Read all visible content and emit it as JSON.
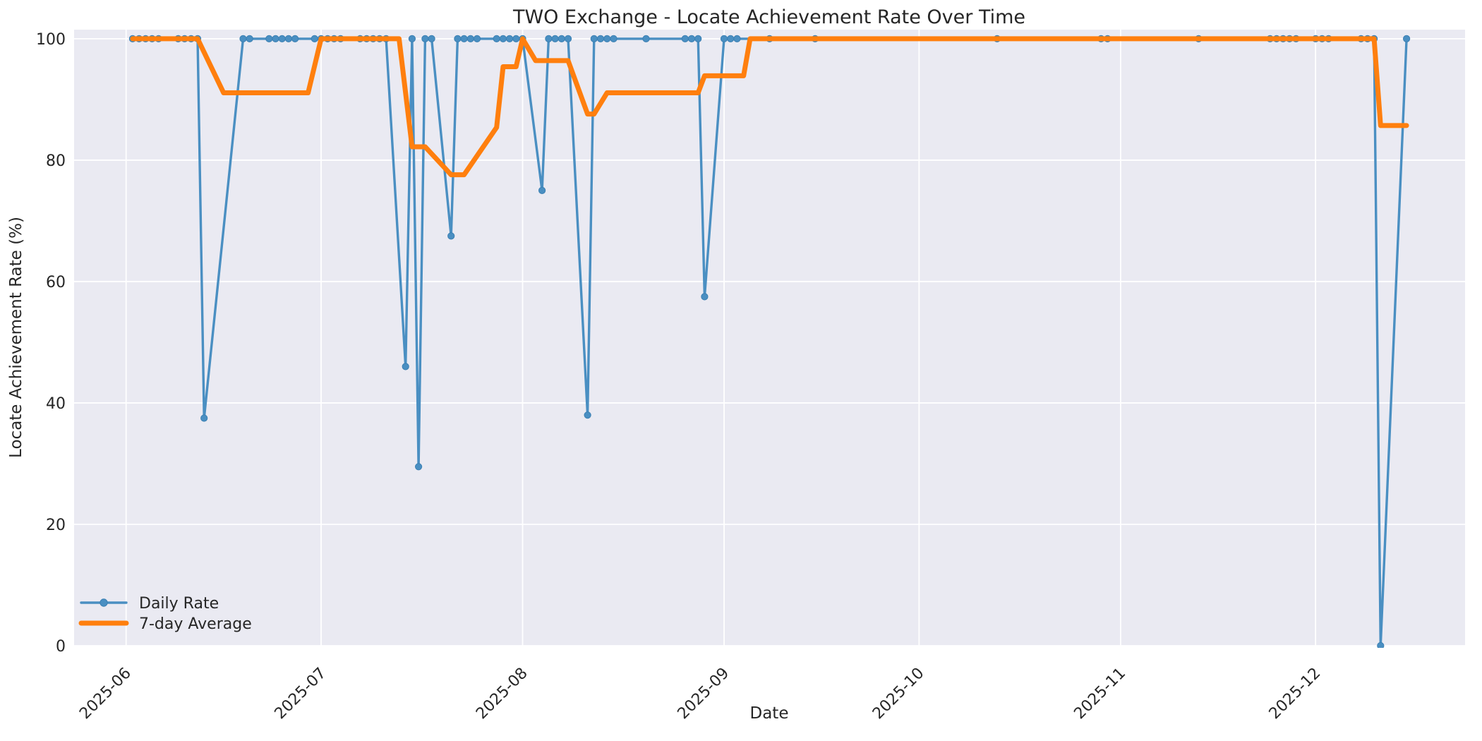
{
  "chart_data": {
    "type": "line",
    "title": "TWO Exchange - Locate Achievement Rate Over Time",
    "xlabel": "Date",
    "ylabel": "Locate Achievement Rate (%)",
    "x_ticks": [
      "2025-06",
      "2025-07",
      "2025-08",
      "2025-09",
      "2025-10",
      "2025-11",
      "2025-12"
    ],
    "y_ticks": [
      0,
      20,
      40,
      60,
      80,
      100
    ],
    "ylim": [
      0,
      101.5
    ],
    "xlim": [
      "2025-05-24",
      "2025-12-24"
    ],
    "grid": true,
    "plot_background": "#eaeaf2",
    "grid_color": "#ffffff",
    "text_color": "#262626",
    "legend_position": "lower left",
    "legend": [
      "Daily Rate",
      "7-day Average"
    ],
    "series": [
      {
        "name": "Daily Rate",
        "color": "#4a8fc2",
        "marker": true,
        "points": [
          [
            "2025-06-02",
            100
          ],
          [
            "2025-06-03",
            100
          ],
          [
            "2025-06-04",
            100
          ],
          [
            "2025-06-05",
            100
          ],
          [
            "2025-06-06",
            100
          ],
          [
            "2025-06-09",
            100
          ],
          [
            "2025-06-10",
            100
          ],
          [
            "2025-06-11",
            100
          ],
          [
            "2025-06-12",
            100
          ],
          [
            "2025-06-13",
            37.5
          ],
          [
            "2025-06-19",
            100
          ],
          [
            "2025-06-20",
            100
          ],
          [
            "2025-06-23",
            100
          ],
          [
            "2025-06-24",
            100
          ],
          [
            "2025-06-25",
            100
          ],
          [
            "2025-06-26",
            100
          ],
          [
            "2025-06-27",
            100
          ],
          [
            "2025-06-30",
            100
          ],
          [
            "2025-07-01",
            100
          ],
          [
            "2025-07-02",
            100
          ],
          [
            "2025-07-03",
            100
          ],
          [
            "2025-07-04",
            100
          ],
          [
            "2025-07-07",
            100
          ],
          [
            "2025-07-08",
            100
          ],
          [
            "2025-07-09",
            100
          ],
          [
            "2025-07-10",
            100
          ],
          [
            "2025-07-11",
            100
          ],
          [
            "2025-07-14",
            46
          ],
          [
            "2025-07-15",
            100
          ],
          [
            "2025-07-16",
            29.5
          ],
          [
            "2025-07-17",
            100
          ],
          [
            "2025-07-18",
            100
          ],
          [
            "2025-07-21",
            67.5
          ],
          [
            "2025-07-22",
            100
          ],
          [
            "2025-07-23",
            100
          ],
          [
            "2025-07-24",
            100
          ],
          [
            "2025-07-25",
            100
          ],
          [
            "2025-07-28",
            100
          ],
          [
            "2025-07-29",
            100
          ],
          [
            "2025-07-30",
            100
          ],
          [
            "2025-07-31",
            100
          ],
          [
            "2025-08-01",
            100
          ],
          [
            "2025-08-04",
            75
          ],
          [
            "2025-08-05",
            100
          ],
          [
            "2025-08-06",
            100
          ],
          [
            "2025-08-07",
            100
          ],
          [
            "2025-08-08",
            100
          ],
          [
            "2025-08-11",
            38
          ],
          [
            "2025-08-12",
            100
          ],
          [
            "2025-08-13",
            100
          ],
          [
            "2025-08-14",
            100
          ],
          [
            "2025-08-15",
            100
          ],
          [
            "2025-08-20",
            100
          ],
          [
            "2025-08-26",
            100
          ],
          [
            "2025-08-27",
            100
          ],
          [
            "2025-08-28",
            100
          ],
          [
            "2025-08-29",
            57.5
          ],
          [
            "2025-09-01",
            100
          ],
          [
            "2025-09-02",
            100
          ],
          [
            "2025-09-03",
            100
          ],
          [
            "2025-09-08",
            100
          ],
          [
            "2025-09-15",
            100
          ],
          [
            "2025-10-13",
            100
          ],
          [
            "2025-10-29",
            100
          ],
          [
            "2025-10-30",
            100
          ],
          [
            "2025-11-13",
            100
          ],
          [
            "2025-11-24",
            100
          ],
          [
            "2025-11-25",
            100
          ],
          [
            "2025-11-26",
            100
          ],
          [
            "2025-11-27",
            100
          ],
          [
            "2025-11-28",
            100
          ],
          [
            "2025-12-01",
            100
          ],
          [
            "2025-12-02",
            100
          ],
          [
            "2025-12-03",
            100
          ],
          [
            "2025-12-08",
            100
          ],
          [
            "2025-12-09",
            100
          ],
          [
            "2025-12-10",
            100
          ],
          [
            "2025-12-11",
            0
          ],
          [
            "2025-12-15",
            100
          ]
        ]
      },
      {
        "name": "7-day Average",
        "color": "#ff7f0e",
        "marker": false,
        "points": [
          [
            "2025-06-02",
            100
          ],
          [
            "2025-06-12",
            100
          ],
          [
            "2025-06-16",
            91.1
          ],
          [
            "2025-06-29",
            91.1
          ],
          [
            "2025-07-01",
            100
          ],
          [
            "2025-07-13",
            100
          ],
          [
            "2025-07-15",
            82.2
          ],
          [
            "2025-07-17",
            82.2
          ],
          [
            "2025-07-21",
            77.6
          ],
          [
            "2025-07-23",
            77.6
          ],
          [
            "2025-07-28",
            85.4
          ],
          [
            "2025-07-29",
            95.4
          ],
          [
            "2025-07-31",
            95.4
          ],
          [
            "2025-08-01",
            100
          ],
          [
            "2025-08-03",
            96.4
          ],
          [
            "2025-08-08",
            96.4
          ],
          [
            "2025-08-11",
            87.6
          ],
          [
            "2025-08-12",
            87.6
          ],
          [
            "2025-08-14",
            91.1
          ],
          [
            "2025-08-28",
            91.1
          ],
          [
            "2025-08-29",
            93.9
          ],
          [
            "2025-09-04",
            93.9
          ],
          [
            "2025-09-05",
            100
          ],
          [
            "2025-12-10",
            100
          ],
          [
            "2025-12-11",
            85.7
          ],
          [
            "2025-12-15",
            85.7
          ]
        ]
      }
    ]
  }
}
